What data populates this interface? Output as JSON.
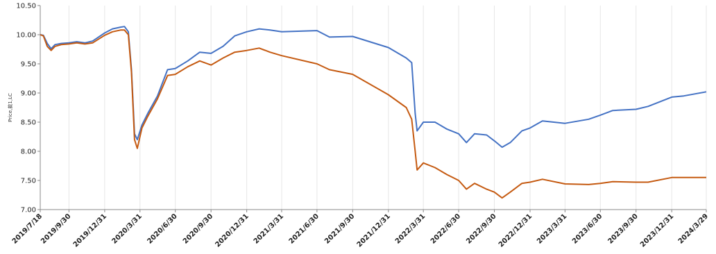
{
  "chart_data": {
    "type": "line",
    "title": "",
    "xlabel": "",
    "ylabel": "Price,款1,LC",
    "ylim": [
      7.0,
      10.5
    ],
    "yticks": [
      "7.00",
      "7.50",
      "8.00",
      "8.50",
      "9.00",
      "9.50",
      "10.00",
      "10.50"
    ],
    "xticks": [
      "2019/7/18",
      "2019/9/30",
      "2019/12/31",
      "2020/3/31",
      "2020/6/30",
      "2020/9/30",
      "2020/12/31",
      "2021/3/31",
      "2021/6/30",
      "2021/9/30",
      "2021/12/31",
      "2022/3/31",
      "2022/6/30",
      "2022/9/30",
      "2022/12/31",
      "2023/3/31",
      "2023/6/30",
      "2023/9/30",
      "2023/12/31",
      "2024/3/29"
    ],
    "xrange": [
      "2019/7/18",
      "2024/3/29"
    ],
    "grid": {
      "x": true,
      "y": false
    },
    "legend": "none",
    "series": [
      {
        "color": "#4472c4",
        "points": [
          [
            "2019/7/18",
            10.0
          ],
          [
            "2019/7/26",
            9.99
          ],
          [
            "2019/8/5",
            9.85
          ],
          [
            "2019/8/15",
            9.76
          ],
          [
            "2019/8/25",
            9.83
          ],
          [
            "2019/9/10",
            9.85
          ],
          [
            "2019/9/30",
            9.86
          ],
          [
            "2019/10/20",
            9.88
          ],
          [
            "2019/11/10",
            9.86
          ],
          [
            "2019/11/30",
            9.89
          ],
          [
            "2019/12/31",
            10.03
          ],
          [
            "2020/1/20",
            10.1
          ],
          [
            "2020/2/10",
            10.13
          ],
          [
            "2020/2/20",
            10.14
          ],
          [
            "2020/3/1",
            10.05
          ],
          [
            "2020/3/9",
            9.4
          ],
          [
            "2020/3/17",
            8.3
          ],
          [
            "2020/3/24",
            8.2
          ],
          [
            "2020/4/5",
            8.45
          ],
          [
            "2020/4/20",
            8.65
          ],
          [
            "2020/5/15",
            8.95
          ],
          [
            "2020/6/10",
            9.4
          ],
          [
            "2020/6/30",
            9.42
          ],
          [
            "2020/8/1",
            9.55
          ],
          [
            "2020/9/1",
            9.7
          ],
          [
            "2020/9/30",
            9.68
          ],
          [
            "2020/10/31",
            9.8
          ],
          [
            "2020/11/30",
            9.98
          ],
          [
            "2020/12/31",
            10.05
          ],
          [
            "2021/2/1",
            10.1
          ],
          [
            "2021/3/1",
            10.08
          ],
          [
            "2021/3/31",
            10.05
          ],
          [
            "2021/6/30",
            10.07
          ],
          [
            "2021/8/1",
            9.96
          ],
          [
            "2021/9/30",
            9.97
          ],
          [
            "2021/12/31",
            9.78
          ],
          [
            "2022/2/15",
            9.6
          ],
          [
            "2022/3/1",
            9.52
          ],
          [
            "2022/3/10",
            8.65
          ],
          [
            "2022/3/15",
            8.35
          ],
          [
            "2022/3/31",
            8.5
          ],
          [
            "2022/4/30",
            8.5
          ],
          [
            "2022/5/31",
            8.38
          ],
          [
            "2022/6/30",
            8.3
          ],
          [
            "2022/7/20",
            8.15
          ],
          [
            "2022/8/10",
            8.3
          ],
          [
            "2022/9/10",
            8.28
          ],
          [
            "2022/9/30",
            8.18
          ],
          [
            "2022/10/20",
            8.07
          ],
          [
            "2022/11/10",
            8.15
          ],
          [
            "2022/12/10",
            8.35
          ],
          [
            "2022/12/31",
            8.4
          ],
          [
            "2023/2/1",
            8.52
          ],
          [
            "2023/3/31",
            8.48
          ],
          [
            "2023/5/31",
            8.55
          ],
          [
            "2023/6/30",
            8.62
          ],
          [
            "2023/8/1",
            8.7
          ],
          [
            "2023/9/30",
            8.72
          ],
          [
            "2023/10/31",
            8.77
          ],
          [
            "2023/12/31",
            8.93
          ],
          [
            "2024/1/31",
            8.95
          ],
          [
            "2024/3/29",
            9.02
          ]
        ]
      },
      {
        "color": "#c55a11",
        "points": [
          [
            "2019/7/18",
            10.0
          ],
          [
            "2019/7/26",
            9.98
          ],
          [
            "2019/8/5",
            9.8
          ],
          [
            "2019/8/15",
            9.73
          ],
          [
            "2019/8/25",
            9.8
          ],
          [
            "2019/9/10",
            9.83
          ],
          [
            "2019/9/30",
            9.84
          ],
          [
            "2019/10/20",
            9.86
          ],
          [
            "2019/11/10",
            9.84
          ],
          [
            "2019/11/30",
            9.86
          ],
          [
            "2019/12/31",
            9.99
          ],
          [
            "2020/1/20",
            10.05
          ],
          [
            "2020/2/10",
            10.08
          ],
          [
            "2020/2/20",
            10.08
          ],
          [
            "2020/3/1",
            10.0
          ],
          [
            "2020/3/9",
            9.35
          ],
          [
            "2020/3/17",
            8.2
          ],
          [
            "2020/3/24",
            8.05
          ],
          [
            "2020/4/5",
            8.4
          ],
          [
            "2020/4/20",
            8.6
          ],
          [
            "2020/5/15",
            8.9
          ],
          [
            "2020/6/10",
            9.3
          ],
          [
            "2020/6/30",
            9.32
          ],
          [
            "2020/8/1",
            9.45
          ],
          [
            "2020/9/1",
            9.55
          ],
          [
            "2020/9/30",
            9.48
          ],
          [
            "2020/10/31",
            9.6
          ],
          [
            "2020/11/30",
            9.7
          ],
          [
            "2020/12/31",
            9.73
          ],
          [
            "2021/2/1",
            9.77
          ],
          [
            "2021/3/1",
            9.7
          ],
          [
            "2021/3/31",
            9.64
          ],
          [
            "2021/6/30",
            9.5
          ],
          [
            "2021/8/1",
            9.4
          ],
          [
            "2021/9/30",
            9.32
          ],
          [
            "2021/12/31",
            8.97
          ],
          [
            "2022/2/15",
            8.75
          ],
          [
            "2022/3/1",
            8.55
          ],
          [
            "2022/3/10",
            8.0
          ],
          [
            "2022/3/15",
            7.68
          ],
          [
            "2022/3/31",
            7.8
          ],
          [
            "2022/4/30",
            7.72
          ],
          [
            "2022/5/31",
            7.6
          ],
          [
            "2022/6/30",
            7.5
          ],
          [
            "2022/7/20",
            7.35
          ],
          [
            "2022/8/10",
            7.45
          ],
          [
            "2022/9/10",
            7.35
          ],
          [
            "2022/9/30",
            7.3
          ],
          [
            "2022/10/20",
            7.2
          ],
          [
            "2022/11/10",
            7.3
          ],
          [
            "2022/12/10",
            7.45
          ],
          [
            "2022/12/31",
            7.47
          ],
          [
            "2023/2/1",
            7.52
          ],
          [
            "2023/3/31",
            7.44
          ],
          [
            "2023/5/31",
            7.43
          ],
          [
            "2023/6/30",
            7.45
          ],
          [
            "2023/8/1",
            7.48
          ],
          [
            "2023/9/30",
            7.47
          ],
          [
            "2023/10/31",
            7.47
          ],
          [
            "2023/12/31",
            7.55
          ],
          [
            "2024/1/31",
            7.55
          ],
          [
            "2024/3/29",
            7.55
          ]
        ]
      }
    ]
  }
}
